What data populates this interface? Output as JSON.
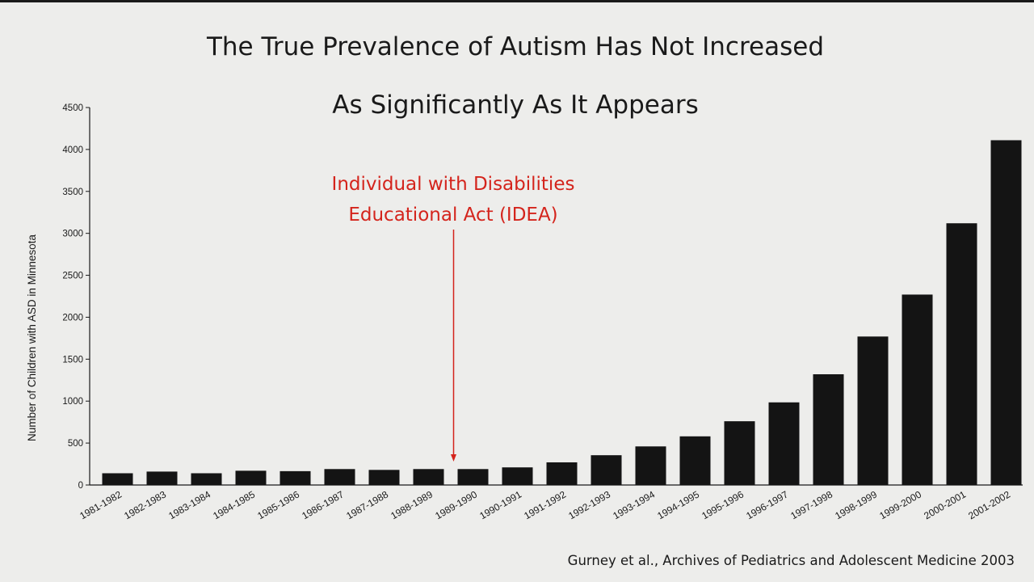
{
  "slide": {
    "title_line1": "The True Prevalence of Autism Has Not Increased",
    "title_line2": "As Significantly As It Appears",
    "annotation_line1": "Individual  with Disabilities",
    "annotation_line2": "Educational Act (IDEA)",
    "citation": "Gurney et al., Archives of Pediatrics and Adolescent Medicine 2003"
  },
  "chart_data": {
    "type": "bar",
    "title": "",
    "xlabel": "",
    "ylabel": "Number of Children with ASD in Minnesota",
    "ylim": [
      0,
      4500
    ],
    "yticks": [
      0,
      500,
      1000,
      1500,
      2000,
      2500,
      3000,
      3500,
      4000,
      4500
    ],
    "categories": [
      "1981-1982",
      "1982-1983",
      "1983-1984",
      "1984-1985",
      "1985-1986",
      "1986-1987",
      "1987-1988",
      "1988-1989",
      "1989-1990",
      "1990-1991",
      "1991-1992",
      "1992-1993",
      "1993-1994",
      "1994-1995",
      "1995-1996",
      "1996-1997",
      "1997-1998",
      "1998-1999",
      "1999-2000",
      "2000-2001",
      "2001-2002"
    ],
    "values": [
      140,
      160,
      140,
      170,
      165,
      190,
      180,
      190,
      190,
      210,
      270,
      355,
      460,
      580,
      760,
      985,
      1320,
      1770,
      2270,
      3120,
      4110
    ],
    "annotation_category": "1989-1990",
    "grid": false,
    "legend": "none",
    "bar_color": "#141414",
    "annotation_color": "#d4241c"
  }
}
